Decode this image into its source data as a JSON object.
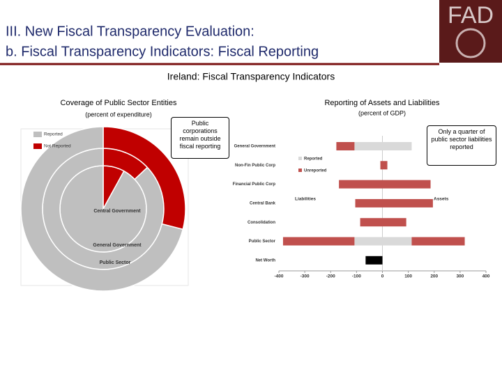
{
  "header": {
    "title": "III. New Fiscal Transparency Evaluation:",
    "subtitle": "b. Fiscal Transparency Indicators: Fiscal Reporting",
    "logo": "FAD"
  },
  "figure_title": "Ireland: Fiscal Transparency Indicators",
  "chart_data": [
    {
      "type": "donut",
      "title": "Coverage of Public Sector Entities",
      "subtitle": "(percent of expenditure)",
      "categories": [
        "Central Government",
        "General Government",
        "Public Sector"
      ],
      "series": [
        {
          "name": "Reported",
          "color": "#bfbfbf",
          "values": [
            92,
            87,
            71
          ]
        },
        {
          "name": "Not Reported",
          "color": "#c00000",
          "values": [
            8,
            13,
            29
          ]
        }
      ],
      "legend": "upper left",
      "annotation": "Public corporations remain outside fiscal reporting"
    },
    {
      "type": "diverging_bar",
      "title": "Reporting of Assets and Liabilities",
      "subtitle": "(percent of GDP)",
      "categories": [
        "General Government",
        "Non-Fin Public Corp",
        "Financial Public Corp",
        "Central Bank",
        "Consolidation",
        "Public Sector",
        "Net Worth"
      ],
      "sides": [
        {
          "name": "Liabilities",
          "series": [
            {
              "name": "Reported",
              "color": "#d9d9d9",
              "values": [
                -108,
                0,
                0,
                0,
                0,
                -108,
                null
              ]
            },
            {
              "name": "Unreported",
              "color": "#c0504d",
              "values": [
                -70,
                -8,
                -168,
                -105,
                -86,
                -276,
                null
              ]
            }
          ]
        },
        {
          "name": "Assets",
          "series": [
            {
              "name": "Reported",
              "color": "#d9d9d9",
              "values": [
                113,
                0,
                0,
                0,
                0,
                113,
                null
              ]
            },
            {
              "name": "Unreported",
              "color": "#c0504d",
              "values": [
                0,
                19,
                186,
                195,
                92,
                205,
                null
              ]
            }
          ]
        }
      ],
      "net_worth": {
        "color": "#000000",
        "values": [
          null,
          null,
          null,
          null,
          null,
          null,
          -65
        ]
      },
      "xlim": [
        -400,
        400
      ],
      "xticks": [
        -400,
        -300,
        -200,
        -100,
        0,
        100,
        200,
        300,
        400
      ],
      "legend": "upper left",
      "annotation": "Only a quarter of public sector liabilities reported"
    }
  ]
}
